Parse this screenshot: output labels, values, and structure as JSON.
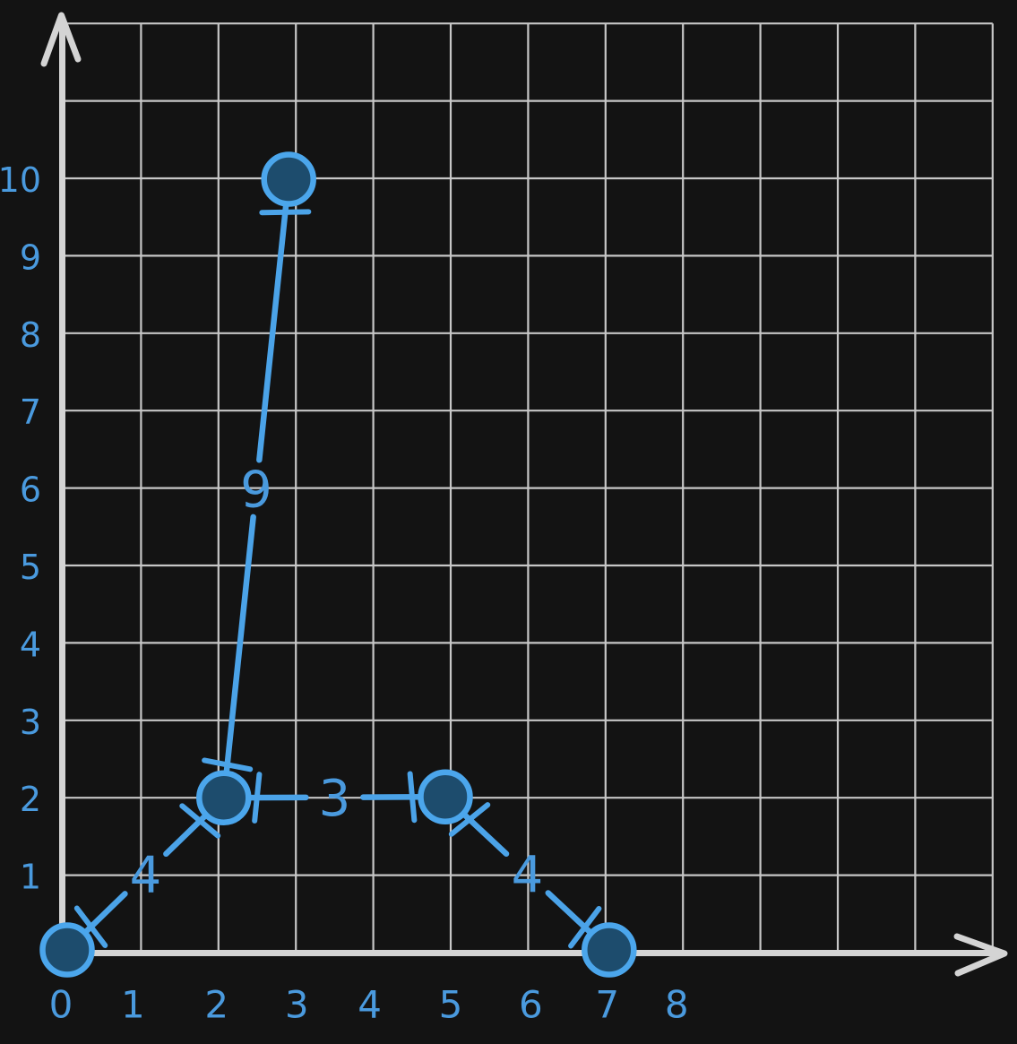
{
  "colors": {
    "background": "#131313",
    "grid": "#c7c7c7",
    "axis": "#d4d4d4",
    "label_blue": "#4a9ade",
    "edge_blue": "#4ba3e8",
    "node_fill": "#1d4c6d",
    "node_stroke": "#4ba6ec"
  },
  "chart_data": {
    "type": "weighted_graph_on_coordinate_grid",
    "title": "",
    "x_axis": {
      "tick_labels": [
        "0",
        "1",
        "2",
        "3",
        "4",
        "5",
        "6",
        "7",
        "8"
      ]
    },
    "y_axis": {
      "tick_labels": [
        "1",
        "2",
        "3",
        "4",
        "5",
        "6",
        "7",
        "8",
        "9",
        "10"
      ]
    },
    "grid": {
      "visible": true,
      "columns": 12,
      "rows": 12
    },
    "nodes": [
      {
        "id": "A",
        "x": 0,
        "y": 0
      },
      {
        "id": "B",
        "x": 2,
        "y": 2
      },
      {
        "id": "C",
        "x": 3,
        "y": 10
      },
      {
        "id": "D",
        "x": 5,
        "y": 2
      },
      {
        "id": "E",
        "x": 7,
        "y": 0
      }
    ],
    "edges": [
      {
        "from": "A",
        "to": "B",
        "weight": "4"
      },
      {
        "from": "B",
        "to": "C",
        "weight": "9"
      },
      {
        "from": "B",
        "to": "D",
        "weight": "3"
      },
      {
        "from": "D",
        "to": "E",
        "weight": "4"
      }
    ]
  }
}
